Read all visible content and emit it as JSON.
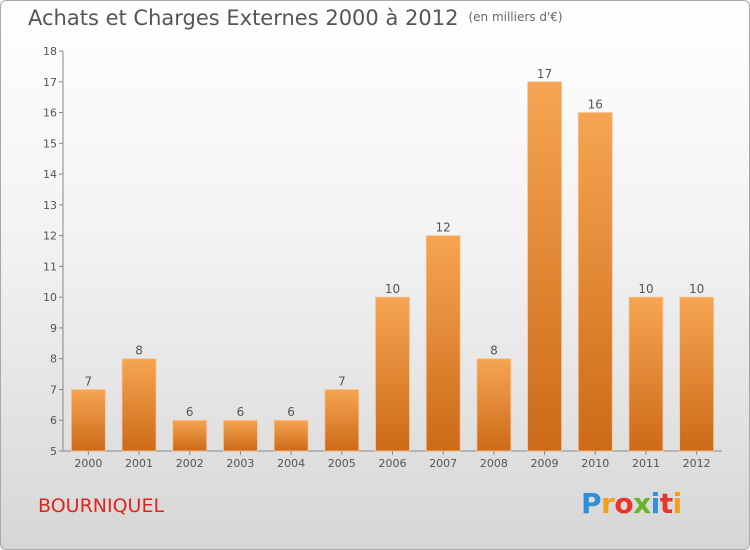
{
  "header": {
    "title": "Achats et Charges Externes 2000 à 2012",
    "subtitle": "(en milliers d'€)"
  },
  "footer": {
    "commune": "BOURNIQUEL",
    "logo_letters": [
      "P",
      "r",
      "o",
      "x",
      "i",
      "t",
      "i"
    ]
  },
  "colors": {
    "bar_top": "#f6a552",
    "bar_bottom": "#cc6a18",
    "commune_text": "#e0251d"
  },
  "chart_data": {
    "type": "bar",
    "title": "Achats et Charges Externes 2000 à 2012",
    "subtitle": "(en milliers d'€)",
    "categories": [
      "2000",
      "2001",
      "2002",
      "2003",
      "2004",
      "2005",
      "2006",
      "2007",
      "2008",
      "2009",
      "2010",
      "2011",
      "2012"
    ],
    "values": [
      7,
      8,
      6,
      6,
      6,
      7,
      10,
      12,
      8,
      17,
      16,
      10,
      10
    ],
    "ylim": [
      5,
      18
    ],
    "yticks": [
      5,
      6,
      7,
      8,
      9,
      10,
      11,
      12,
      13,
      14,
      15,
      16,
      17,
      18
    ],
    "grid": false,
    "legend": "none",
    "data_labels": true
  }
}
